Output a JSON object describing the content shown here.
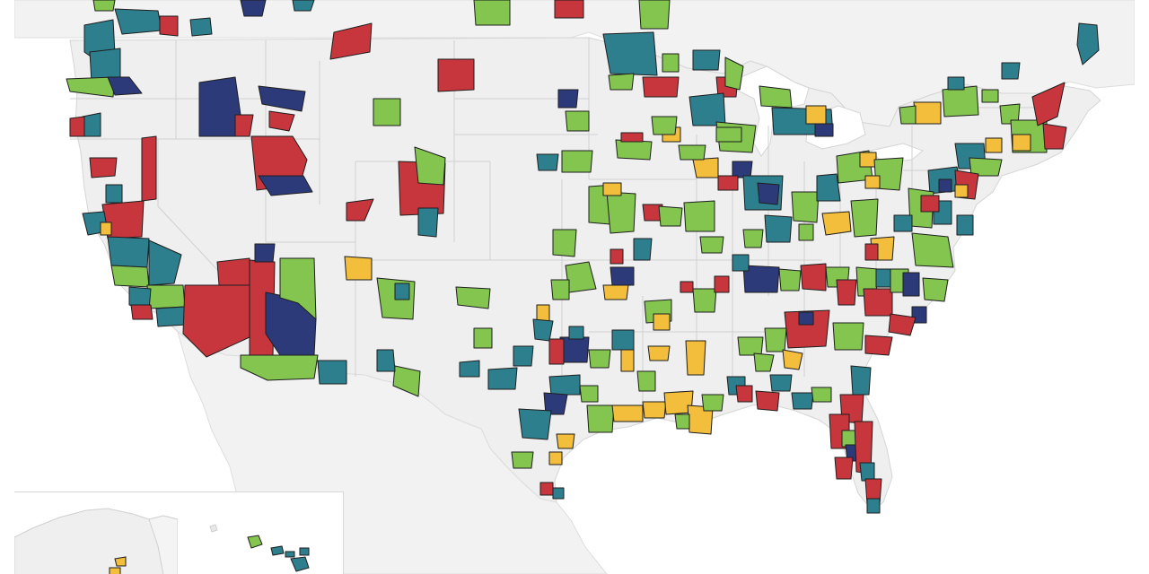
{
  "map": {
    "title": "",
    "palette": {
      "red": "#C8363D",
      "teal": "#2E7F8E",
      "green": "#84C54F",
      "yellow": "#F3BE3C",
      "navy": "#2D3A7A",
      "land": "#EFEFEF",
      "water": "#FFFFFF",
      "border": "#D5D5D5",
      "region_outline": "#1E1E1E"
    },
    "legend": []
  },
  "insets": {
    "alaska": {
      "label": ""
    },
    "hawaii": {
      "label": ""
    }
  }
}
